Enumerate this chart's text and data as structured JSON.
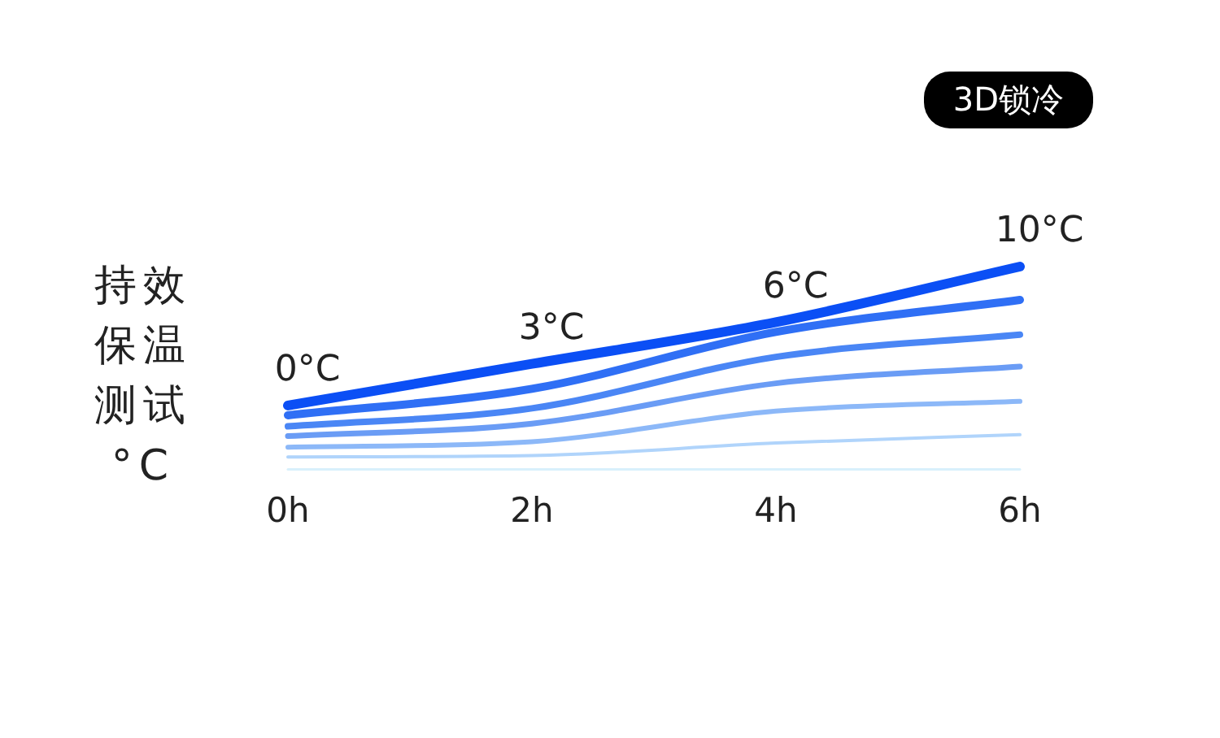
{
  "chart_data": {
    "type": "line",
    "ylabel": "持效保温测试°C",
    "annotations": [
      "3D锁冷"
    ],
    "x": [
      0,
      2,
      4,
      6
    ],
    "xlim": [
      0,
      6
    ],
    "xticks": [
      {
        "value": 0,
        "label": "0h"
      },
      {
        "value": 2,
        "label": "2h"
      },
      {
        "value": 4,
        "label": "4h"
      },
      {
        "value": 6,
        "label": "6h"
      }
    ],
    "tick_labels": "x",
    "grid": false,
    "legend": false,
    "marker": "none",
    "line_style": "solid",
    "series": [
      {
        "color": "#0b4ff5",
        "values": [
          0,
          3,
          6,
          10
        ],
        "value_labels": [
          "0°C",
          "3°C",
          "6°C",
          "10°C"
        ]
      },
      {
        "color": "#2f6ff5",
        "values": [
          -0.7,
          1.2,
          5.3,
          7.6
        ]
      },
      {
        "color": "#4a86f5",
        "values": [
          -1.5,
          -0.2,
          3.5,
          5.1
        ]
      },
      {
        "color": "#6a9cf5",
        "values": [
          -2.2,
          -1.3,
          1.6,
          2.8
        ]
      },
      {
        "color": "#8cb8f8",
        "values": [
          -3.0,
          -2.6,
          -0.4,
          0.3
        ]
      },
      {
        "color": "#b0d4fb",
        "values": [
          -3.7,
          -3.6,
          -2.7,
          -2.1
        ]
      },
      {
        "color": "#d8f0fc",
        "values": [
          -4.6,
          -4.6,
          -4.6,
          -4.6
        ]
      }
    ]
  }
}
